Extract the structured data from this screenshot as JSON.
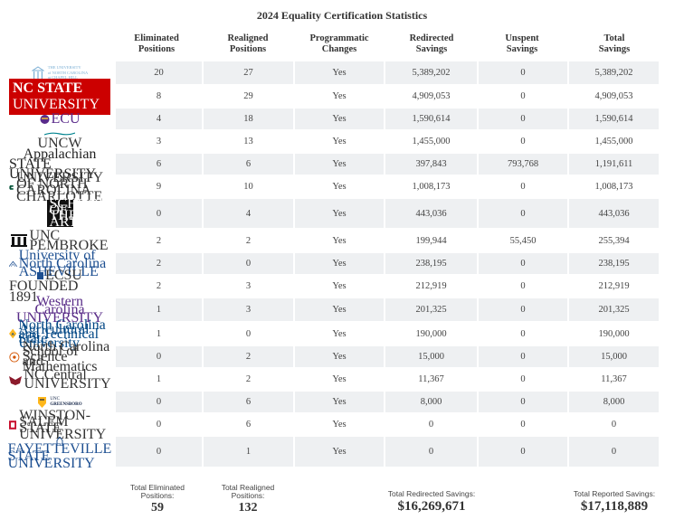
{
  "title": "2024 Equality Certification Statistics",
  "columns": [
    {
      "l1": "Eliminated",
      "l2": "Positions"
    },
    {
      "l1": "Realigned",
      "l2": "Positions"
    },
    {
      "l1": "Programmatic",
      "l2": "Changes"
    },
    {
      "l1": "Redirected",
      "l2": "Savings"
    },
    {
      "l1": "Unspent",
      "l2": "Savings"
    },
    {
      "l1": "Total",
      "l2": "Savings"
    }
  ],
  "logos": {
    "unc_ch": {
      "t1": "THE UNIVERSITY",
      "t2": "of NORTH CAROLINA",
      "t3": "at CHAPEL HILL"
    },
    "ncstate": {
      "t1": "NC STATE",
      "t2": " UNIVERSITY"
    },
    "ecu": {
      "t1": "ECU"
    },
    "uncw": {
      "t1": "UNCW"
    },
    "app": {
      "t1": "Appalachian",
      "t2": "STATE UNIVERSITY"
    },
    "charlotte": {
      "t1": "UNIVERSITY OF NORTH CAROLINA",
      "t2": "CHARLOTTE"
    },
    "uncsa": {
      "t1": "SCHOOL",
      "t2": "OF THE",
      "t3": "ARTS"
    },
    "uncp": {
      "t1": "UNC",
      "t2": "PEMBROKE"
    },
    "unca": {
      "t1": "University of North Carolina",
      "t2": "ASHEVILLE"
    },
    "ecsu": {
      "t1": "ECSU",
      "t2": "FOUNDED 1891"
    },
    "wcu": {
      "t1": "Western",
      "t2": "Carolina",
      "t3": "UNIVERSITY"
    },
    "ncat": {
      "t1": "North Carolina",
      "t2": "Agricultural and Technical",
      "t3": "State University"
    },
    "ncssm": {
      "t1": "North Carolina",
      "t2": "School of Science",
      "t3": "and Mathematics"
    },
    "nccu": {
      "t1": "NCCentral",
      "t2": "UNIVERSITY"
    },
    "uncg": {
      "t1": "UNC",
      "t2": "GREENSBORO"
    },
    "wssu": {
      "t1": "WINSTON-SALEM",
      "t2": "STATE UNIVERSITY"
    },
    "fsu": {
      "t1": "FAYETTEVILLE",
      "t2": "STATE UNIVERSITY"
    }
  },
  "rows": [
    {
      "logo": "unc_ch",
      "cells": [
        "20",
        "27",
        "Yes",
        "5,389,202",
        "0",
        "5,389,202"
      ]
    },
    {
      "logo": "ncstate",
      "cells": [
        "8",
        "29",
        "Yes",
        "4,909,053",
        "0",
        "4,909,053"
      ]
    },
    {
      "logo": "ecu",
      "cells": [
        "4",
        "18",
        "Yes",
        "1,590,614",
        "0",
        "1,590,614"
      ]
    },
    {
      "logo": "uncw",
      "cells": [
        "3",
        "13",
        "Yes",
        "1,455,000",
        "0",
        "1,455,000"
      ]
    },
    {
      "logo": "app",
      "cells": [
        "6",
        "6",
        "Yes",
        "397,843",
        "793,768",
        "1,191,611"
      ]
    },
    {
      "logo": "charlotte",
      "cells": [
        "9",
        "10",
        "Yes",
        "1,008,173",
        "0",
        "1,008,173"
      ]
    },
    {
      "logo": "uncsa",
      "cells": [
        "0",
        "4",
        "Yes",
        "443,036",
        "0",
        "443,036"
      ]
    },
    {
      "logo": "uncp",
      "cells": [
        "2",
        "2",
        "Yes",
        "199,944",
        "55,450",
        "255,394"
      ]
    },
    {
      "logo": "unca",
      "cells": [
        "2",
        "0",
        "Yes",
        "238,195",
        "0",
        "238,195"
      ]
    },
    {
      "logo": "ecsu",
      "cells": [
        "2",
        "3",
        "Yes",
        "212,919",
        "0",
        "212,919"
      ]
    },
    {
      "logo": "wcu",
      "cells": [
        "1",
        "3",
        "Yes",
        "201,325",
        "0",
        "201,325"
      ]
    },
    {
      "logo": "ncat",
      "cells": [
        "1",
        "0",
        "Yes",
        "190,000",
        "0",
        "190,000"
      ]
    },
    {
      "logo": "ncssm",
      "cells": [
        "0",
        "2",
        "Yes",
        "15,000",
        "0",
        "15,000"
      ]
    },
    {
      "logo": "nccu",
      "cells": [
        "1",
        "2",
        "Yes",
        "11,367",
        "0",
        "11,367"
      ]
    },
    {
      "logo": "uncg",
      "cells": [
        "0",
        "6",
        "Yes",
        "8,000",
        "0",
        "8,000"
      ]
    },
    {
      "logo": "wssu",
      "cells": [
        "0",
        "6",
        "Yes",
        "0",
        "0",
        "0"
      ]
    },
    {
      "logo": "fsu",
      "cells": [
        "0",
        "1",
        "Yes",
        "0",
        "0",
        "0"
      ]
    }
  ],
  "totals": {
    "eliminated": {
      "l1": "Total Eliminated",
      "l2": "Positions:",
      "value": "59"
    },
    "realigned": {
      "l1": "Total Realigned",
      "l2": "Positions:",
      "value": "132"
    },
    "redirected": {
      "l1": "Total Redirected Savings:",
      "value": "$16,269,671"
    },
    "reported": {
      "l1": "Total Reported Savings:",
      "value": "$17,118,889"
    }
  },
  "colors": {
    "shade": "#eef0f2",
    "ncstate_red": "#cc0000",
    "ecu_purple": "#592a8a",
    "uncw_teal": "#006666",
    "charlotte_green": "#005035",
    "unca_blue": "#1d4f91",
    "wcu_purple": "#592c88",
    "ncat_gold": "#fdb927",
    "nccu_maroon": "#8b1a2b",
    "wssu_red": "#c8102e"
  }
}
